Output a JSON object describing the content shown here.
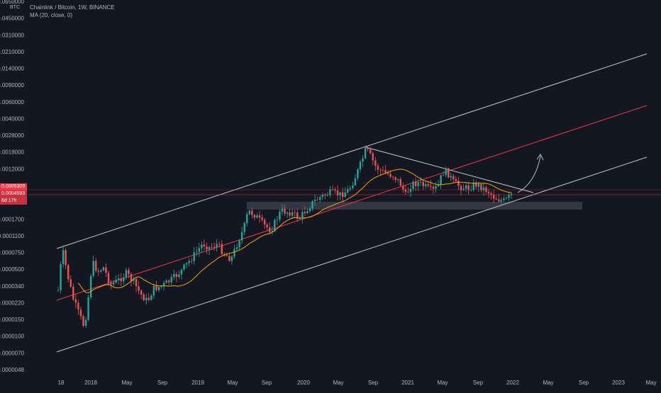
{
  "header": {
    "symbol_title": "Chainlink / Bitcoin, 1W, BINANCE",
    "indicator": "MA (20, close, 0)",
    "currency": "BTC"
  },
  "price_tags": {
    "last_price": "0.0005309",
    "current_price": "0.0004593",
    "countdown": "6d 17h"
  },
  "colors": {
    "background": "#131722",
    "up_candle": "#26a69a",
    "down_candle": "#ef5350",
    "ma_line": "#f7a600",
    "channel_lines": "#c8c8c8",
    "mid_line": "#f23645",
    "price_line": "#f23645",
    "support_zone": "#5d606b",
    "axis_text": "#b2b5be"
  },
  "chart_data": {
    "type": "candlestick",
    "scale": "log",
    "y_tick_labels": [
      "0.0650000",
      "0.0450000",
      "0.0310000",
      "0.0210000",
      "0.0140000",
      "0.0090000",
      "0.0060000",
      "0.0040000",
      "0.0028000",
      "0.0018000",
      "0.0012000",
      "0.0008000",
      "0.0002500",
      "0.0001700",
      "0.0001100",
      "0.0000750",
      "0.0000500",
      "0.0000340",
      "0.0000220",
      "0.0000150",
      "0.0000100",
      "0.0000070",
      "0.0000048"
    ],
    "x_tick_labels": [
      "18",
      "2018",
      "May",
      "Sep",
      "2019",
      "May",
      "Sep",
      "2020",
      "May",
      "Sep",
      "2021",
      "May",
      "Sep",
      "2022",
      "May",
      "Sep",
      "2023",
      "May"
    ],
    "ma_label": "MA (20, close, 0)",
    "last_price": 0.0005309,
    "current_price": 0.0004593
  }
}
